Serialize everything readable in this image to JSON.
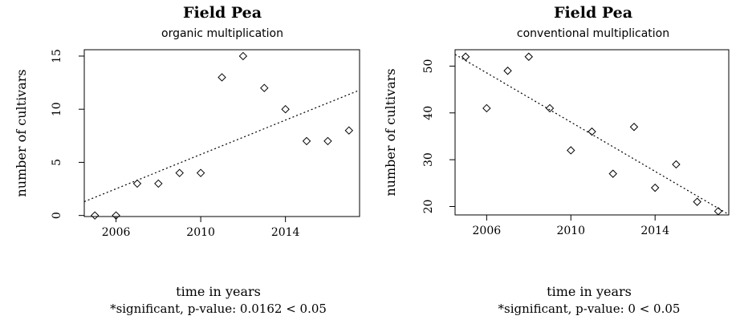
{
  "chart_data": [
    {
      "type": "scatter",
      "title": "Field Pea",
      "subtitle": "organic multiplication",
      "xlabel": "time in years",
      "ylabel": "number of cultivars",
      "note": "*significant, p-value:  0.0162  < 0.05",
      "x": [
        2005,
        2006,
        2007,
        2008,
        2009,
        2010,
        2011,
        2012,
        2013,
        2014,
        2015,
        2016,
        2017
      ],
      "y": [
        0,
        0,
        3,
        3,
        4,
        4,
        13,
        15,
        12,
        10,
        7,
        7,
        8
      ],
      "trend": {
        "x": [
          2004.5,
          2017.5
        ],
        "y": [
          1.3,
          11.8
        ]
      },
      "xticks": [
        2006,
        2010,
        2014
      ],
      "yticks": [
        0,
        5,
        10,
        15
      ],
      "xlim": [
        2004.5,
        2017.5
      ],
      "ylim": [
        -0.1,
        15.6
      ],
      "grid": false
    },
    {
      "type": "scatter",
      "title": "Field Pea",
      "subtitle": "conventional multiplication",
      "xlabel": "time in years",
      "ylabel": "number of cultivars",
      "note": "*significant, p-value:  0  < 0.05",
      "x": [
        2005,
        2006,
        2007,
        2008,
        2009,
        2010,
        2011,
        2012,
        2013,
        2014,
        2015,
        2016,
        2017
      ],
      "y": [
        52,
        41,
        49,
        52,
        41,
        32,
        36,
        27,
        37,
        24,
        29,
        21,
        19
      ],
      "trend": {
        "x": [
          2004.5,
          2017.5
        ],
        "y": [
          52.5,
          18.3
        ]
      },
      "xticks": [
        2006,
        2010,
        2014
      ],
      "yticks": [
        20,
        30,
        40,
        50
      ],
      "xlim": [
        2004.5,
        2017.5
      ],
      "ylim": [
        18.2,
        53.5
      ],
      "grid": false
    }
  ]
}
